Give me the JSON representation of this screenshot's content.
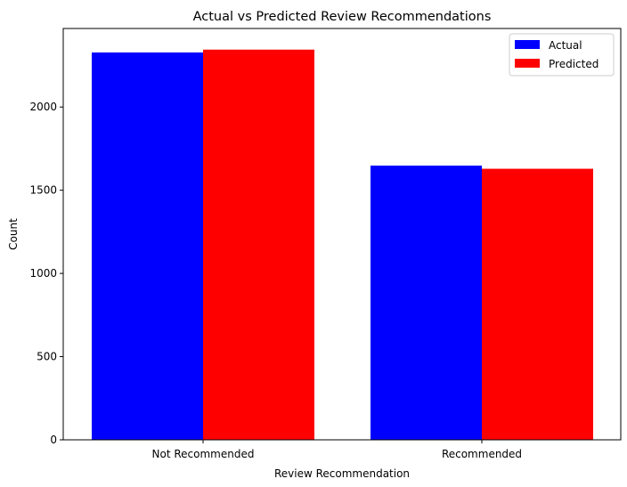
{
  "chart_data": {
    "type": "bar",
    "title": "Actual vs Predicted Review Recommendations",
    "xlabel": "Review Recommendation",
    "ylabel": "Count",
    "categories": [
      "Not Recommended",
      "Recommended"
    ],
    "series": [
      {
        "name": "Actual",
        "color": "#0000ff",
        "values": [
          2328,
          1648
        ]
      },
      {
        "name": "Predicted",
        "color": "#ff0000",
        "values": [
          2345,
          1629
        ]
      }
    ],
    "ylim": [
      0,
      2472
    ],
    "yticks": [
      0,
      500,
      1000,
      1500,
      2000
    ],
    "grid": false,
    "legend_position": "top-right"
  }
}
